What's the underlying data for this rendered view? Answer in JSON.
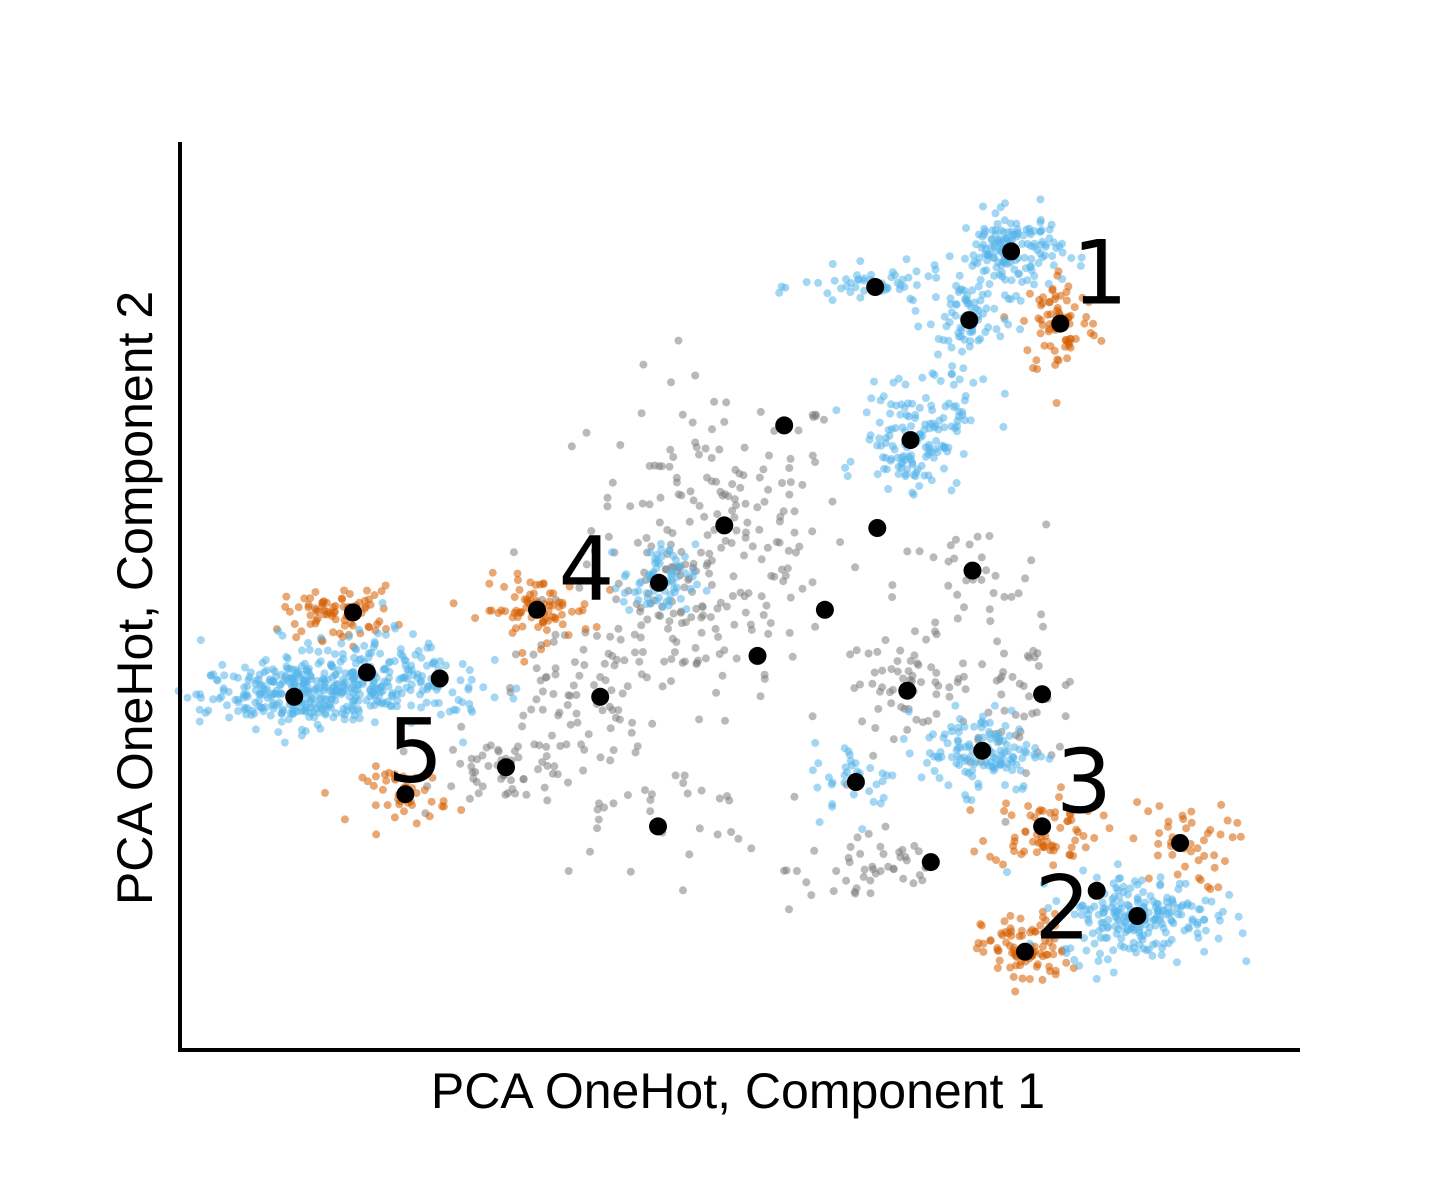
{
  "chart_data": {
    "type": "scatter",
    "title": "",
    "xlabel": "PCA OneHot, Component 1",
    "ylabel": "PCA OneHot, Component 2",
    "xlim": [
      0,
      100
    ],
    "ylim": [
      0,
      100
    ],
    "ticks_shown": false,
    "grid": false,
    "legend": "none",
    "colors": {
      "blue": "#56b4e9",
      "orange": "#d55e00",
      "gray": "#808080",
      "centroid": "#000000"
    },
    "clusters": [
      {
        "color": "blue",
        "center": [
          75.8,
          89.5
        ],
        "spread": [
          2.4,
          2.3
        ],
        "count": 160
      },
      {
        "color": "blue",
        "center": [
          63.1,
          85.4
        ],
        "spread": [
          3.4,
          1.1
        ],
        "count": 55
      },
      {
        "color": "blue",
        "center": [
          71.9,
          81.6
        ],
        "spread": [
          1.6,
          2.6
        ],
        "count": 55
      },
      {
        "color": "blue",
        "center": [
          66.4,
          67.8
        ],
        "spread": [
          2.3,
          2.7
        ],
        "count": 130
      },
      {
        "color": "blue",
        "center": [
          69.5,
          74.5
        ],
        "spread": [
          2.0,
          5.0
        ],
        "count": 40
      },
      {
        "color": "blue",
        "center": [
          42.9,
          51.4
        ],
        "spread": [
          1.7,
          2.2
        ],
        "count": 70
      },
      {
        "color": "blue",
        "center": [
          73.1,
          32.2
        ],
        "spread": [
          2.8,
          2.4
        ],
        "count": 130
      },
      {
        "color": "blue",
        "center": [
          61.3,
          28.7
        ],
        "spread": [
          2.0,
          2.2
        ],
        "count": 35
      },
      {
        "color": "blue",
        "center": [
          87.6,
          13.1
        ],
        "spread": [
          3.6,
          2.4
        ],
        "count": 220
      },
      {
        "color": "blue",
        "center": [
          8.8,
          38.4
        ],
        "spread": [
          4.4,
          1.8
        ],
        "count": 280
      },
      {
        "color": "blue",
        "center": [
          15.6,
          41.2
        ],
        "spread": [
          4.0,
          2.2
        ],
        "count": 170
      },
      {
        "color": "blue",
        "center": [
          24.3,
          39.2
        ],
        "spread": [
          3.0,
          2.0
        ],
        "count": 30
      },
      {
        "color": "orange",
        "center": [
          80.4,
          81.2
        ],
        "spread": [
          1.8,
          3.2
        ],
        "count": 80
      },
      {
        "color": "orange",
        "center": [
          78.8,
          23.0
        ],
        "spread": [
          2.6,
          2.1
        ],
        "count": 70
      },
      {
        "color": "orange",
        "center": [
          91.6,
          21.2
        ],
        "spread": [
          2.4,
          2.6
        ],
        "count": 45
      },
      {
        "color": "orange",
        "center": [
          77.1,
          9.1
        ],
        "spread": [
          2.0,
          2.1
        ],
        "count": 90
      },
      {
        "color": "orange",
        "center": [
          13.0,
          48.0
        ],
        "spread": [
          2.6,
          1.5
        ],
        "count": 80
      },
      {
        "color": "orange",
        "center": [
          31.5,
          48.3
        ],
        "spread": [
          2.6,
          1.9
        ],
        "count": 80
      },
      {
        "color": "orange",
        "center": [
          19.2,
          27.0
        ],
        "spread": [
          2.0,
          1.6
        ],
        "count": 45
      },
      {
        "color": "gray",
        "center": [
          48.5,
          58.0
        ],
        "spread": [
          6.0,
          8.5
        ],
        "count": 170
      },
      {
        "color": "gray",
        "center": [
          45.0,
          48.0
        ],
        "spread": [
          4.5,
          6.0
        ],
        "count": 90
      },
      {
        "color": "gray",
        "center": [
          66.0,
          40.0
        ],
        "spread": [
          3.0,
          2.5
        ],
        "count": 60
      },
      {
        "color": "gray",
        "center": [
          63.0,
          18.5
        ],
        "spread": [
          4.0,
          2.5
        ],
        "count": 45
      },
      {
        "color": "gray",
        "center": [
          35.0,
          38.0
        ],
        "spread": [
          4.0,
          3.5
        ],
        "count": 60
      },
      {
        "color": "gray",
        "center": [
          29.0,
          30.0
        ],
        "spread": [
          3.5,
          2.0
        ],
        "count": 60
      },
      {
        "color": "gray",
        "center": [
          77.0,
          38.0
        ],
        "spread": [
          3.0,
          3.5
        ],
        "count": 45
      },
      {
        "color": "gray",
        "center": [
          41.5,
          25.0
        ],
        "spread": [
          6.0,
          4.0
        ],
        "count": 40
      },
      {
        "color": "gray",
        "center": [
          72.0,
          51.0
        ],
        "spread": [
          3.5,
          3.5
        ],
        "count": 35
      }
    ],
    "centroids": [
      [
        75.8,
        89.5
      ],
      [
        63.1,
        85.4
      ],
      [
        71.9,
        81.6
      ],
      [
        80.4,
        81.2
      ],
      [
        66.4,
        67.8
      ],
      [
        54.6,
        69.5
      ],
      [
        49.0,
        58.0
      ],
      [
        63.3,
        57.7
      ],
      [
        72.2,
        52.8
      ],
      [
        42.9,
        51.4
      ],
      [
        14.3,
        48.0
      ],
      [
        31.5,
        48.3
      ],
      [
        58.4,
        48.3
      ],
      [
        15.6,
        41.1
      ],
      [
        22.4,
        40.4
      ],
      [
        8.8,
        38.3
      ],
      [
        37.4,
        38.3
      ],
      [
        52.1,
        43.0
      ],
      [
        66.1,
        39.0
      ],
      [
        78.7,
        38.6
      ],
      [
        73.1,
        32.1
      ],
      [
        28.6,
        30.2
      ],
      [
        61.3,
        28.5
      ],
      [
        19.2,
        27.1
      ],
      [
        42.8,
        23.4
      ],
      [
        78.7,
        23.4
      ],
      [
        91.6,
        21.5
      ],
      [
        68.3,
        19.3
      ],
      [
        83.8,
        16.0
      ],
      [
        87.6,
        13.1
      ],
      [
        77.1,
        9.0
      ]
    ],
    "annotations": [
      {
        "text": "1",
        "x": 81.5,
        "y": 83.5
      },
      {
        "text": "2",
        "x": 78.0,
        "y": 10.5
      },
      {
        "text": "3",
        "x": 80.0,
        "y": 25.0
      },
      {
        "text": "4",
        "x": 33.5,
        "y": 49.5
      },
      {
        "text": "5",
        "x": 17.5,
        "y": 28.5
      }
    ]
  }
}
